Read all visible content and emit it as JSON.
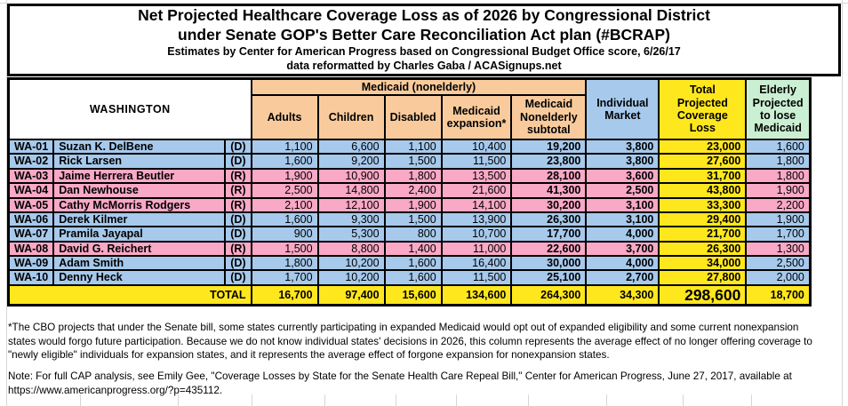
{
  "title": {
    "line1": "Net Projected Healthcare Coverage Loss as of 2026 by Congressional District",
    "line2": "under Senate GOP's Better Care Reconciliation Act plan (#BCRAP)",
    "subtitle1": "Estimates by Center for American Progress based on Congressional Budget Office score, 6/26/17",
    "subtitle2": "data reformatted by Charles Gaba / ACASignups.net"
  },
  "table": {
    "state": "WASHINGTON",
    "group_header": "Medicaid (nonelderly)",
    "medicaid_columns": [
      "Adults",
      "Children",
      "Disabled",
      "Medicaid expansion*",
      "Medicaid Nonelderly subtotal"
    ],
    "other_columns": [
      "Individual Market",
      "Total Projected Coverage Loss",
      "Elderly Projected to lose Medicaid"
    ],
    "rows": [
      {
        "district": "WA-01",
        "name": "Suzan K. DelBene",
        "party": "(D)",
        "values": [
          "1,100",
          "6,600",
          "1,100",
          "10,400",
          "19,200",
          "3,800",
          "23,000",
          "1,600"
        ]
      },
      {
        "district": "WA-02",
        "name": "Rick Larsen",
        "party": "(D)",
        "values": [
          "1,600",
          "9,200",
          "1,500",
          "11,500",
          "23,800",
          "3,800",
          "27,600",
          "1,800"
        ]
      },
      {
        "district": "WA-03",
        "name": "Jaime Herrera Beutler",
        "party": "(R)",
        "values": [
          "1,900",
          "10,900",
          "1,800",
          "13,500",
          "28,100",
          "3,600",
          "31,700",
          "1,800"
        ]
      },
      {
        "district": "WA-04",
        "name": "Dan Newhouse",
        "party": "(R)",
        "values": [
          "2,500",
          "14,800",
          "2,400",
          "21,600",
          "41,300",
          "2,500",
          "43,800",
          "1,900"
        ]
      },
      {
        "district": "WA-05",
        "name": "Cathy McMorris Rodgers",
        "party": "(R)",
        "values": [
          "2,100",
          "12,100",
          "1,900",
          "14,100",
          "30,200",
          "3,100",
          "33,300",
          "2,200"
        ]
      },
      {
        "district": "WA-06",
        "name": "Derek Kilmer",
        "party": "(D)",
        "values": [
          "1,600",
          "9,300",
          "1,500",
          "13,900",
          "26,300",
          "3,100",
          "29,400",
          "1,900"
        ]
      },
      {
        "district": "WA-07",
        "name": "Pramila Jayapal",
        "party": "(D)",
        "values": [
          "900",
          "5,300",
          "800",
          "10,700",
          "17,700",
          "4,000",
          "21,700",
          "1,700"
        ]
      },
      {
        "district": "WA-08",
        "name": "David G. Reichert",
        "party": "(R)",
        "values": [
          "1,500",
          "8,800",
          "1,400",
          "11,000",
          "22,600",
          "3,700",
          "26,300",
          "1,300"
        ]
      },
      {
        "district": "WA-09",
        "name": "Adam Smith",
        "party": "(D)",
        "values": [
          "1,800",
          "10,200",
          "1,600",
          "16,400",
          "30,000",
          "4,000",
          "34,000",
          "2,500"
        ]
      },
      {
        "district": "WA-10",
        "name": "Denny Heck",
        "party": "(D)",
        "values": [
          "1,700",
          "10,200",
          "1,600",
          "11,500",
          "25,100",
          "2,700",
          "27,800",
          "2,000"
        ]
      }
    ],
    "total": {
      "label": "TOTAL",
      "values": [
        "16,700",
        "97,400",
        "15,600",
        "134,600",
        "264,300",
        "34,300",
        "298,600",
        "18,700"
      ]
    }
  },
  "footnote": "*The CBO projects that under the Senate bill, some states currently participating in expanded Medicaid would opt out of expanded eligibility and some current nonexpansion\nstates would forgo future participation. Because we do not know individual states' decisions in 2026, this column represents the average effect of no longer offering coverage to\n\"newly eligible\" individuals for expansion states, and it represents the average effect of forgone expansion for nonexpansion states.",
  "note": "Note: For full CAP analysis, see Emily Gee, \"Coverage Losses by State for the Senate Health Care Repeal Bill,\" Center for American Progress, June 27, 2017, available at\nhttps://www.americanprogress.org/?p=435112.",
  "colors": {
    "democrat_row": "#A6C9EC",
    "republican_row": "#F9A8C5",
    "medicaid_header": "#F9CB9C",
    "individual_market_header": "#A6C9EC",
    "total_column": "#FFE71E",
    "elderly_header": "#CBEFD2",
    "total_row": "#FFE71E",
    "border": "#000000"
  }
}
